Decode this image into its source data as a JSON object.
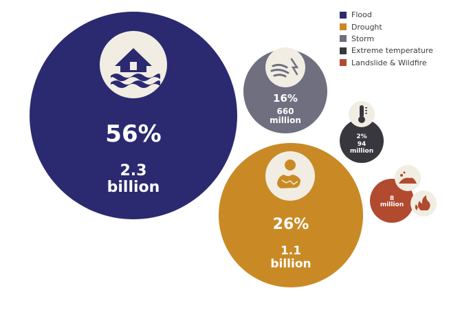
{
  "chart_data": {
    "type": "bubble",
    "bubbles": [
      {
        "name": "Flood",
        "percent": "56%",
        "people": "2.3 billion",
        "percent_value": 56,
        "people_millions": 2300,
        "color": "#2b2a70",
        "icon": "house-flood-icon"
      },
      {
        "name": "Drought",
        "percent": "26%",
        "people": "1.1 billion",
        "percent_value": 26,
        "people_millions": 1100,
        "color": "#c98a25",
        "icon": "cracked-earth-sun-icon"
      },
      {
        "name": "Storm",
        "percent": "16%",
        "people": "660 million",
        "percent_value": 16,
        "people_millions": 660,
        "color": "#6f6f80",
        "icon": "storm-wind-icon"
      },
      {
        "name": "Extreme temperature",
        "percent": "2%",
        "people": "94 million",
        "percent_value": 2,
        "people_millions": 94,
        "color": "#37373d",
        "icon": "thermometer-icon"
      },
      {
        "name": "Landslide & Wildfire",
        "percent": "",
        "people": "8 million",
        "percent_value": null,
        "people_millions": 8,
        "color": "#b24a2f",
        "icon": "landslide-wildfire-icon"
      }
    ]
  },
  "legend": [
    {
      "label": "Flood",
      "color": "#2b2a70"
    },
    {
      "label": "Drought",
      "color": "#c98a25"
    },
    {
      "label": "Storm",
      "color": "#6f6f80"
    },
    {
      "label": "Extreme temperature",
      "color": "#37373d"
    },
    {
      "label": "Landslide & Wildfire",
      "color": "#b24a2f"
    }
  ],
  "colors": {
    "icon_bg": "#f1ede3",
    "background": "#ffffff"
  }
}
